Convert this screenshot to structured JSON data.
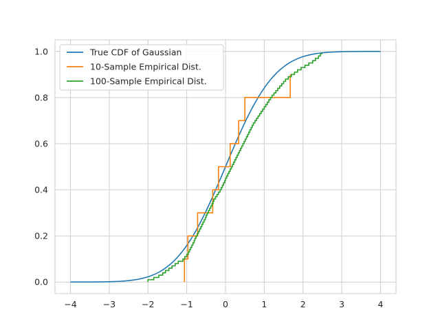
{
  "chart_data": {
    "type": "line",
    "title": "",
    "xlabel": "",
    "ylabel": "",
    "xlim": [
      -4.4,
      4.4
    ],
    "ylim": [
      -0.05,
      1.05
    ],
    "xticks": [
      -4,
      -3,
      -2,
      -1,
      0,
      1,
      2,
      3,
      4
    ],
    "xtick_labels": [
      "−4",
      "−3",
      "−2",
      "−1",
      "0",
      "1",
      "2",
      "3",
      "4"
    ],
    "yticks": [
      0.0,
      0.2,
      0.4,
      0.6,
      0.8,
      1.0
    ],
    "ytick_labels": [
      "0.0",
      "0.2",
      "0.4",
      "0.6",
      "0.8",
      "1.0"
    ],
    "grid": true,
    "legend_position": "top-left",
    "series": [
      {
        "name": "True CDF of Gaussian",
        "color": "#1f77b4",
        "kind": "normal_cdf",
        "x_range": [
          -4,
          4
        ]
      },
      {
        "name": "10-Sample Empirical Dist.",
        "color": "#ff7f0e",
        "kind": "ecdf",
        "samples": [
          -1.06,
          -0.97,
          -0.72,
          -0.33,
          -0.18,
          0.12,
          0.34,
          0.5,
          1.67,
          1.67
        ]
      },
      {
        "name": "100-Sample Empirical Dist.",
        "color": "#2ca02c",
        "kind": "ecdf",
        "samples": [
          -2.0,
          -1.85,
          -1.72,
          -1.62,
          -1.55,
          -1.46,
          -1.38,
          -1.3,
          -1.22,
          -1.1,
          -1.05,
          -1.0,
          -0.96,
          -0.93,
          -0.9,
          -0.87,
          -0.84,
          -0.81,
          -0.79,
          -0.76,
          -0.73,
          -0.7,
          -0.67,
          -0.64,
          -0.61,
          -0.58,
          -0.55,
          -0.52,
          -0.5,
          -0.47,
          -0.44,
          -0.41,
          -0.38,
          -0.35,
          -0.32,
          -0.3,
          -0.26,
          -0.22,
          -0.18,
          -0.14,
          -0.11,
          -0.08,
          -0.05,
          -0.02,
          0.0,
          0.03,
          0.06,
          0.09,
          0.12,
          0.15,
          0.18,
          0.21,
          0.24,
          0.27,
          0.3,
          0.33,
          0.36,
          0.39,
          0.42,
          0.45,
          0.48,
          0.51,
          0.54,
          0.57,
          0.6,
          0.63,
          0.66,
          0.69,
          0.72,
          0.76,
          0.8,
          0.84,
          0.88,
          0.92,
          0.96,
          1.0,
          1.04,
          1.08,
          1.12,
          1.16,
          1.2,
          1.25,
          1.3,
          1.35,
          1.4,
          1.45,
          1.5,
          1.55,
          1.62,
          1.7,
          1.78,
          1.86,
          1.95,
          2.05,
          2.15,
          2.25,
          2.32,
          2.4,
          2.45,
          2.5
        ]
      }
    ]
  }
}
